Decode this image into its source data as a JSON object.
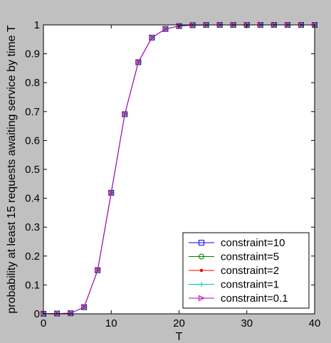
{
  "chart_data": {
    "type": "line",
    "title": "",
    "xlabel": "T",
    "ylabel": "probability at least 15 requests awaiting service by time T",
    "xlim": [
      0,
      40
    ],
    "ylim": [
      0,
      1
    ],
    "xticks": [
      0,
      10,
      20,
      30,
      40
    ],
    "yticks": [
      0,
      0.1,
      0.2,
      0.3,
      0.4,
      0.5,
      0.6,
      0.7,
      0.8,
      0.9,
      1
    ],
    "xtick_labels": [
      "0",
      "10",
      "20",
      "30",
      "40"
    ],
    "ytick_labels": [
      "0",
      "0.1",
      "0.2",
      "0.3",
      "0.4",
      "0.5",
      "0.6",
      "0.7",
      "0.8",
      "0.9",
      "1"
    ],
    "grid": false,
    "legend_position": "bottom-right",
    "x": [
      0,
      2,
      4,
      6,
      8,
      10,
      12,
      14,
      16,
      18,
      20,
      22,
      24,
      26,
      28,
      30,
      32,
      34,
      36,
      38,
      40
    ],
    "series": [
      {
        "name": "constraint=10",
        "color": "#0000ff",
        "marker": "square",
        "values": [
          0,
          0.001,
          0.002,
          0.023,
          0.151,
          0.419,
          0.691,
          0.871,
          0.956,
          0.986,
          0.996,
          0.999,
          1,
          1,
          1,
          1,
          1,
          1,
          1,
          1,
          1
        ]
      },
      {
        "name": "constraint=5",
        "color": "#008000",
        "marker": "circle",
        "values": [
          0,
          0.001,
          0.002,
          0.023,
          0.151,
          0.419,
          0.691,
          0.871,
          0.956,
          0.986,
          0.996,
          0.999,
          1,
          1,
          1,
          1,
          1,
          1,
          1,
          1,
          1
        ]
      },
      {
        "name": "constraint=2",
        "color": "#ff0000",
        "marker": "dot",
        "values": [
          0,
          0.001,
          0.002,
          0.023,
          0.151,
          0.419,
          0.691,
          0.871,
          0.956,
          0.986,
          0.996,
          0.999,
          1,
          1,
          1,
          1,
          1,
          1,
          1,
          1,
          1
        ]
      },
      {
        "name": "constraint=1",
        "color": "#00bfbf",
        "marker": "plus",
        "values": [
          0,
          0.001,
          0.002,
          0.023,
          0.151,
          0.419,
          0.691,
          0.871,
          0.956,
          0.986,
          0.996,
          0.999,
          1,
          1,
          1,
          1,
          1,
          1,
          1,
          1,
          1
        ]
      },
      {
        "name": "constraint=0.1",
        "color": "#bf00bf",
        "marker": "triangle-right",
        "values": [
          0,
          0.001,
          0.002,
          0.023,
          0.151,
          0.419,
          0.691,
          0.871,
          0.956,
          0.986,
          0.996,
          0.999,
          1,
          1,
          1,
          1,
          1,
          1,
          1,
          1,
          1
        ]
      }
    ]
  }
}
